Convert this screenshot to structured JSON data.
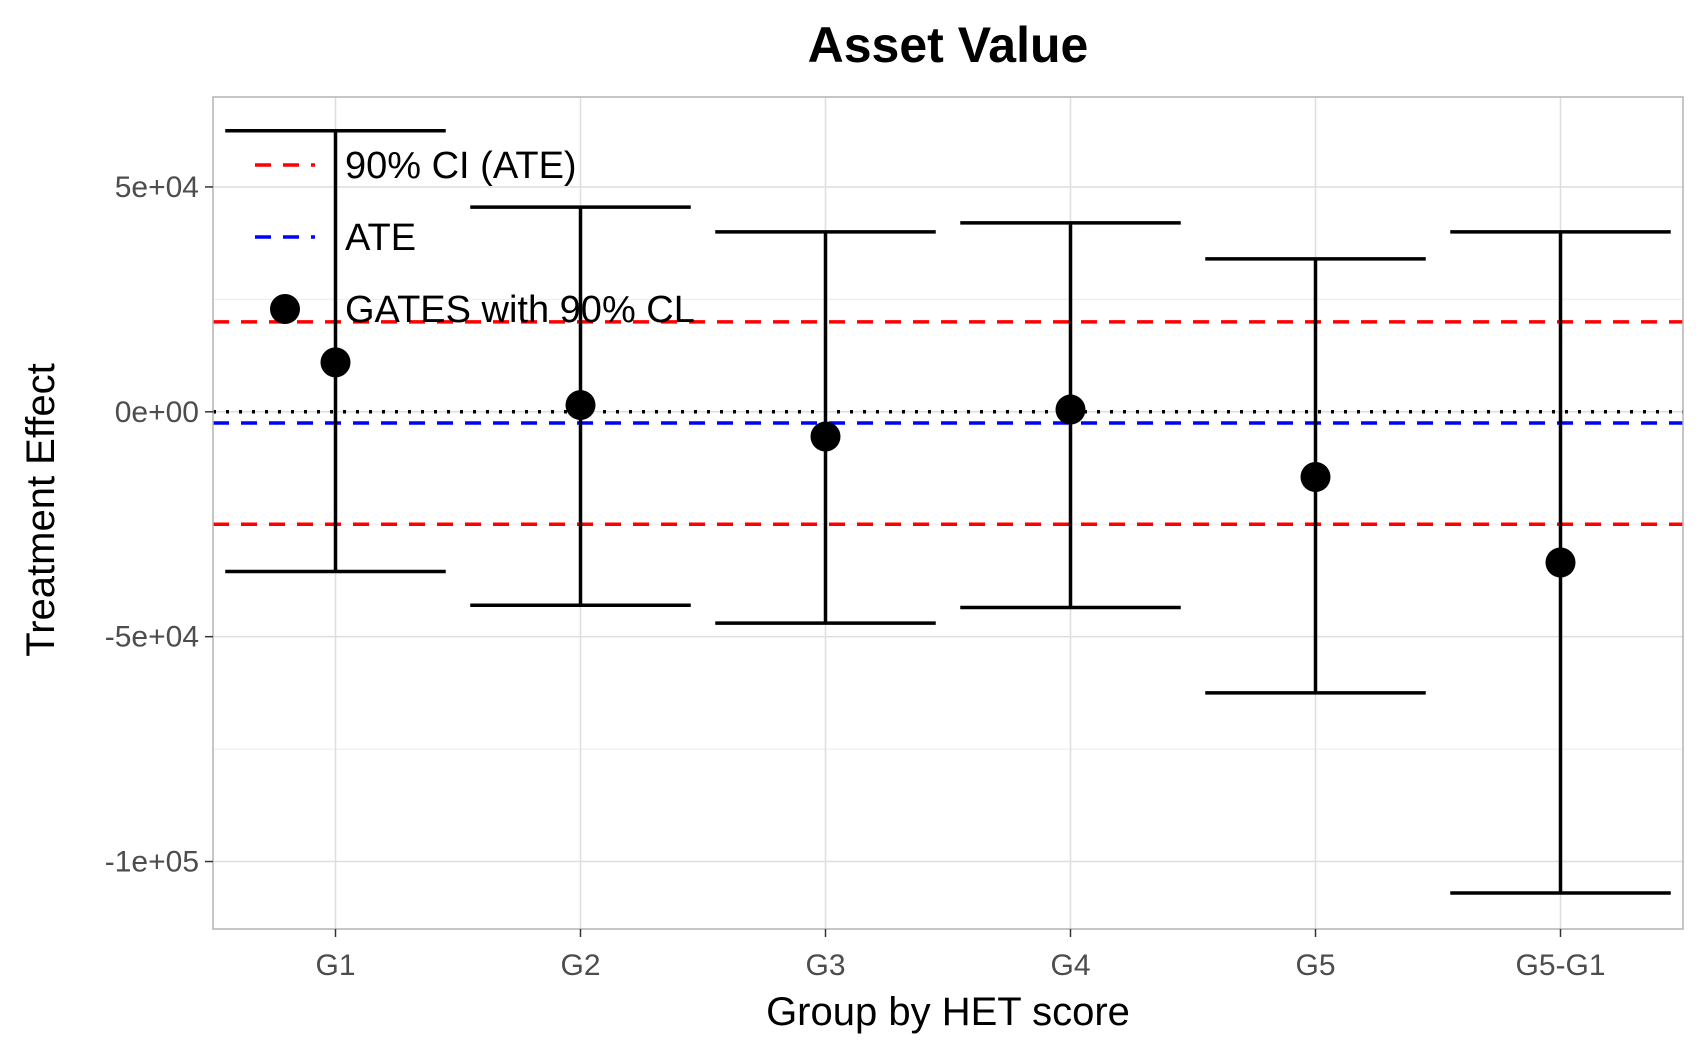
{
  "chart_data": {
    "type": "scatter",
    "title": "Asset Value",
    "xlabel": "Group by HET score",
    "ylabel": "Treatment Effect",
    "categories": [
      "G1",
      "G2",
      "G3",
      "G4",
      "G5",
      "G5-G1"
    ],
    "y_ticks": [
      50000,
      0,
      -50000,
      -100000
    ],
    "y_tick_labels": [
      "5e+04",
      "0e+00",
      "-5e+04",
      "-1e+05"
    ],
    "ylim": [
      -115000,
      70000
    ],
    "grid": true,
    "legend_position": "top-left",
    "series": [
      {
        "name": "GATES with 90% CL",
        "style": "point-errorbar",
        "color": "#000000",
        "values": [
          11000,
          1500,
          -5500,
          500,
          -14500,
          -33500
        ],
        "lower": [
          -35500,
          -43000,
          -47000,
          -43500,
          -62500,
          -107000
        ],
        "upper": [
          62500,
          45500,
          40000,
          42000,
          34000,
          40000
        ]
      }
    ],
    "reference_lines": [
      {
        "name": "90% CI (ATE)",
        "value": 20000,
        "color": "#ff0000",
        "style": "dashed"
      },
      {
        "name": "90% CI (ATE)",
        "value": -25000,
        "color": "#ff0000",
        "style": "dashed"
      },
      {
        "name": "ATE",
        "value": -2500,
        "color": "#0000ff",
        "style": "dashed"
      },
      {
        "name": "zero",
        "value": 0,
        "color": "#000000",
        "style": "dotted"
      }
    ],
    "legend": [
      {
        "label": "90% CI (ATE)",
        "symbol": "dashed-line",
        "color": "#ff0000"
      },
      {
        "label": "ATE",
        "symbol": "dashed-line",
        "color": "#0000ff"
      },
      {
        "label": "GATES with 90% CL",
        "symbol": "point",
        "color": "#000000"
      }
    ]
  }
}
